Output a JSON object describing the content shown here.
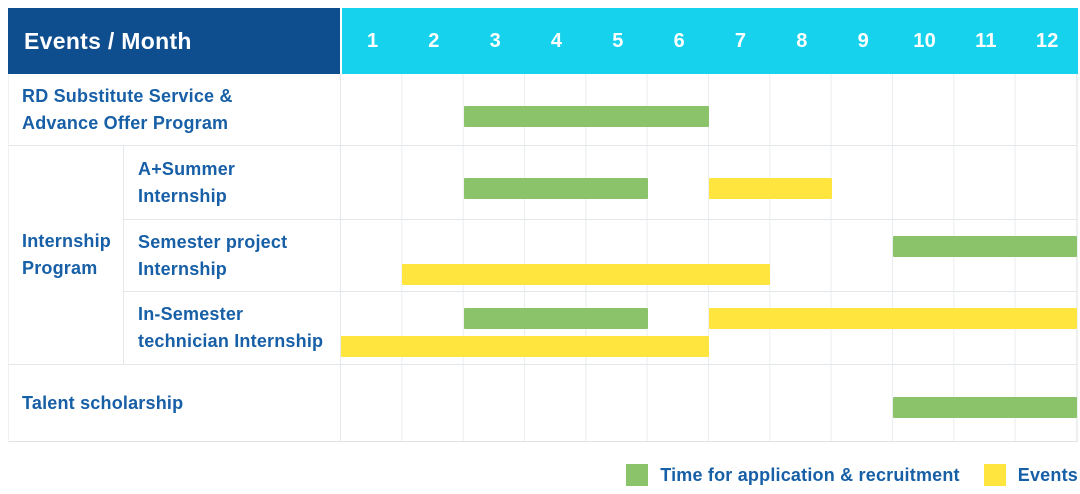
{
  "header": {
    "title": "Events / Month",
    "months": [
      "1",
      "2",
      "3",
      "4",
      "5",
      "6",
      "7",
      "8",
      "9",
      "10",
      "11",
      "12"
    ]
  },
  "colors": {
    "header_bg": "#0E4D8E",
    "months_bg": "#17D2EC",
    "green": "#8AC36A",
    "yellow": "#FFE53E",
    "label_text": "#175FA6",
    "grid_line": "#EAEDEF"
  },
  "chart_data": {
    "type": "bar",
    "variant": "gantt",
    "title": "Events / Month",
    "xlabel": "Month",
    "x_ticks": [
      1,
      2,
      3,
      4,
      5,
      6,
      7,
      8,
      9,
      10,
      11,
      12
    ],
    "x_range": [
      1,
      12
    ],
    "grid": true,
    "legend_position": "bottom-right",
    "series_colors": {
      "Time for application & recruitment": "#8AC36A",
      "Events": "#FFE53E"
    },
    "group_label": "Internship Program",
    "group_label_lines": [
      "Internship",
      "Program"
    ],
    "rows": [
      {
        "label": "RD Substitute Service & Advance Offer Program",
        "label_lines": [
          "RD Substitute Service &",
          "Advance Offer Program"
        ],
        "group": null,
        "bars": [
          {
            "series": "Time for application & recruitment",
            "color": "green",
            "start_month": 3,
            "end_month": 6,
            "lane": "single"
          }
        ]
      },
      {
        "label": "A+Summer Internship",
        "label_lines": [
          "A+Summer",
          "Internship"
        ],
        "group": "Internship Program",
        "bars": [
          {
            "series": "Time for application & recruitment",
            "color": "green",
            "start_month": 3,
            "end_month": 5,
            "lane": "single"
          },
          {
            "series": "Events",
            "color": "yellow",
            "start_month": 7,
            "end_month": 8,
            "lane": "single"
          }
        ]
      },
      {
        "label": "Semester project Internship",
        "label_lines": [
          "Semester project",
          "Internship"
        ],
        "group": "Internship Program",
        "bars": [
          {
            "series": "Time for application & recruitment",
            "color": "green",
            "start_month": 10,
            "end_month": 12,
            "lane": "top"
          },
          {
            "series": "Events",
            "color": "yellow",
            "start_month": 2,
            "end_month": 7,
            "lane": "bottom"
          }
        ]
      },
      {
        "label": "In-Semester technician Internship",
        "label_lines": [
          "In-Semester",
          "technician Internship"
        ],
        "group": "Internship Program",
        "bars": [
          {
            "series": "Time for application & recruitment",
            "color": "green",
            "start_month": 3,
            "end_month": 5,
            "lane": "top"
          },
          {
            "series": "Events",
            "color": "yellow",
            "start_month": 7,
            "end_month": 12,
            "lane": "top"
          },
          {
            "series": "Events",
            "color": "yellow",
            "start_month": 1,
            "end_month": 6,
            "lane": "bottom"
          }
        ]
      },
      {
        "label": "Talent scholarship",
        "label_lines": [
          "Talent scholarship"
        ],
        "group": null,
        "bars": [
          {
            "series": "Time for application & recruitment",
            "color": "green",
            "start_month": 10,
            "end_month": 12,
            "lane": "single"
          }
        ]
      }
    ]
  },
  "legend": [
    {
      "label": "Time for application & recruitment",
      "color": "#8AC36A",
      "swatch": "green"
    },
    {
      "label": "Events",
      "color": "#FFE53E",
      "swatch": "yellow"
    }
  ]
}
